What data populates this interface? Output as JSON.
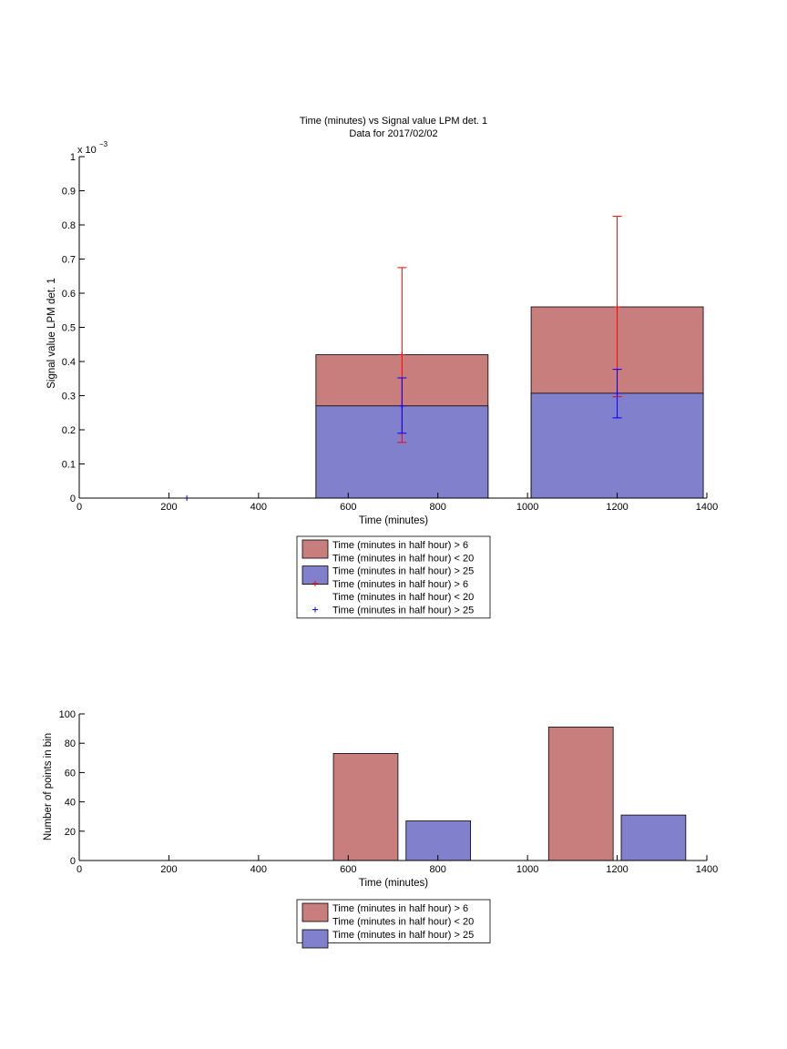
{
  "colors": {
    "red_bar": "#c97e7e",
    "blue_bar": "#8080cc",
    "red_marker": "#ff0000",
    "blue_marker": "#0000ff",
    "axis": "#000000"
  },
  "chart_data": [
    {
      "type": "bar",
      "title": "Time (minutes) vs Signal value LPM det. 1",
      "subtitle": "Data for 2017/02/02",
      "xlabel": "Time (minutes)",
      "ylabel": "Signal value LPM det. 1",
      "y_exponent": "x 10",
      "y_exponent_power": "−3",
      "xlim": [
        0,
        1400
      ],
      "ylim": [
        0,
        1
      ],
      "y_scale_factor": 0.001,
      "xticks": [
        "0",
        "200",
        "400",
        "600",
        "800",
        "1000",
        "1200",
        "1400"
      ],
      "xtick_values": [
        0,
        200,
        400,
        600,
        800,
        1000,
        1200,
        1400
      ],
      "yticks": [
        "0",
        "0.1",
        "0.2",
        "0.3",
        "0.4",
        "0.5",
        "0.6",
        "0.7",
        "0.8",
        "0.9",
        "1"
      ],
      "ytick_values": [
        0,
        0.1,
        0.2,
        0.3,
        0.4,
        0.5,
        0.6,
        0.7,
        0.8,
        0.9,
        1
      ],
      "grid": false,
      "legend_position": "below",
      "bars": [
        {
          "series": "red",
          "x_start": 528,
          "x_end": 912,
          "value": 0.42
        },
        {
          "series": "red",
          "x_start": 1008,
          "x_end": 1392,
          "value": 0.56
        },
        {
          "series": "blue",
          "x_start": 528,
          "x_end": 912,
          "value": 0.27
        },
        {
          "series": "blue",
          "x_start": 1008,
          "x_end": 1392,
          "value": 0.307
        }
      ],
      "errorbars": [
        {
          "series": "red",
          "x": 720,
          "y": 0.42,
          "low": 0.163,
          "high": 0.675
        },
        {
          "series": "red",
          "x": 1200,
          "y": 0.56,
          "low": 0.297,
          "high": 0.825
        },
        {
          "series": "blue",
          "x": 720,
          "y": 0.27,
          "low": 0.19,
          "high": 0.352
        },
        {
          "series": "blue",
          "x": 1200,
          "y": 0.307,
          "low": 0.235,
          "high": 0.377
        },
        {
          "series": "blue",
          "x": 240,
          "y": 0.0,
          "low": 0.0,
          "high": 0.0
        }
      ],
      "legend": [
        {
          "kind": "patch",
          "color": "red_bar",
          "lines": [
            "Time (minutes in half hour) > 6",
            "Time (minutes in half hour) < 20"
          ]
        },
        {
          "kind": "patch",
          "color": "blue_bar",
          "lines": [
            "Time (minutes in half hour) > 25"
          ]
        },
        {
          "kind": "plus",
          "color": "red_marker",
          "lines": [
            "Time (minutes in half hour) > 6",
            "Time (minutes in half hour) < 20"
          ]
        },
        {
          "kind": "plus",
          "color": "blue_marker",
          "lines": [
            "Time (minutes in half hour) > 25"
          ]
        }
      ]
    },
    {
      "type": "bar",
      "title": "",
      "xlabel": "Time (minutes)",
      "ylabel": "Number of points in bin",
      "xlim": [
        0,
        1400
      ],
      "ylim": [
        0,
        100
      ],
      "xticks": [
        "0",
        "200",
        "400",
        "600",
        "800",
        "1000",
        "1200",
        "1400"
      ],
      "xtick_values": [
        0,
        200,
        400,
        600,
        800,
        1000,
        1200,
        1400
      ],
      "yticks": [
        "0",
        "20",
        "40",
        "60",
        "80",
        "100"
      ],
      "ytick_values": [
        0,
        20,
        40,
        60,
        80,
        100
      ],
      "grid": false,
      "legend_position": "below",
      "bars": [
        {
          "series": "red",
          "x_start": 567,
          "x_end": 711,
          "value": 73
        },
        {
          "series": "blue",
          "x_start": 729,
          "x_end": 873,
          "value": 27
        },
        {
          "series": "red",
          "x_start": 1047,
          "x_end": 1191,
          "value": 91
        },
        {
          "series": "blue",
          "x_start": 1209,
          "x_end": 1353,
          "value": 31
        }
      ],
      "legend": [
        {
          "kind": "patch",
          "color": "red_bar",
          "lines": [
            "Time (minutes in half hour) > 6",
            "Time (minutes in half hour) < 20"
          ]
        },
        {
          "kind": "patch",
          "color": "blue_bar",
          "lines": [
            "Time (minutes in half hour) > 25"
          ]
        }
      ]
    }
  ]
}
